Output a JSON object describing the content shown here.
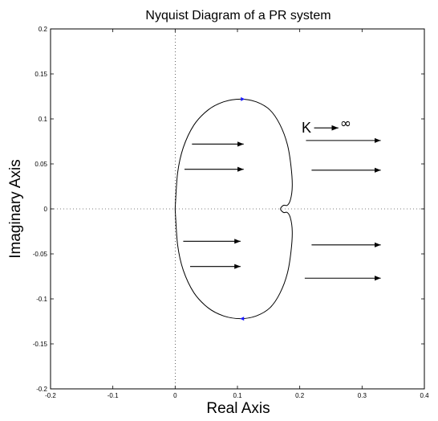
{
  "chart_data": {
    "type": "line",
    "title": "Nyquist Diagram of a PR system",
    "xlabel": "Real Axis",
    "ylabel": "Imaginary Axis",
    "xlim": [
      -0.2,
      0.4
    ],
    "ylim": [
      -0.2,
      0.2
    ],
    "grid": false,
    "x_ticks": [
      "-0.2",
      "-0.1",
      "0",
      "0.1",
      "0.2",
      "0.3",
      "0.4"
    ],
    "x_tick_values": [
      -0.2,
      -0.1,
      0,
      0.1,
      0.2,
      0.3,
      0.4
    ],
    "y_ticks": [
      "0.2",
      "0.15",
      "0.1",
      "0.05",
      "0",
      "-0.05",
      "-0.1",
      "-0.15",
      "-0.2"
    ],
    "y_tick_values": [
      0.2,
      0.15,
      0.1,
      0.05,
      0,
      -0.05,
      -0.1,
      -0.15,
      -0.2
    ],
    "series": [
      {
        "values": [
          [
            0.0,
            0.0
          ],
          [
            0.004,
            0.04
          ],
          [
            0.013,
            0.068
          ],
          [
            0.03,
            0.093
          ],
          [
            0.053,
            0.11
          ],
          [
            0.078,
            0.119
          ],
          [
            0.105,
            0.122
          ],
          [
            0.13,
            0.119
          ],
          [
            0.152,
            0.11
          ],
          [
            0.168,
            0.094
          ],
          [
            0.18,
            0.072
          ],
          [
            0.186,
            0.047
          ],
          [
            0.188,
            0.025
          ],
          [
            0.185,
            0.01
          ],
          [
            0.18,
            0.004
          ],
          [
            0.174,
            0.004
          ],
          [
            0.169,
            0.0
          ],
          [
            0.174,
            -0.004
          ],
          [
            0.18,
            -0.004
          ],
          [
            0.185,
            -0.01
          ],
          [
            0.188,
            -0.025
          ],
          [
            0.186,
            -0.047
          ],
          [
            0.18,
            -0.072
          ],
          [
            0.168,
            -0.094
          ],
          [
            0.152,
            -0.11
          ],
          [
            0.13,
            -0.119
          ],
          [
            0.105,
            -0.122
          ],
          [
            0.078,
            -0.119
          ],
          [
            0.053,
            -0.11
          ],
          [
            0.03,
            -0.093
          ],
          [
            0.013,
            -0.068
          ],
          [
            0.004,
            -0.04
          ],
          [
            0.0,
            0.0
          ]
        ]
      }
    ],
    "direction_markers": [
      {
        "x": 0.108,
        "y": 0.122,
        "direction": "right"
      },
      {
        "x": 0.108,
        "y": -0.122,
        "direction": "left"
      }
    ],
    "arrows": [
      {
        "x1": 0.027,
        "y1": 0.072,
        "x2": 0.11,
        "y2": 0.072
      },
      {
        "x1": 0.015,
        "y1": 0.044,
        "x2": 0.11,
        "y2": 0.044
      },
      {
        "x1": 0.013,
        "y1": -0.036,
        "x2": 0.105,
        "y2": -0.036
      },
      {
        "x1": 0.024,
        "y1": -0.064,
        "x2": 0.105,
        "y2": -0.064
      },
      {
        "x1": 0.21,
        "y1": 0.076,
        "x2": 0.33,
        "y2": 0.076
      },
      {
        "x1": 0.219,
        "y1": 0.043,
        "x2": 0.33,
        "y2": 0.043
      },
      {
        "x1": 0.219,
        "y1": -0.04,
        "x2": 0.33,
        "y2": -0.04
      },
      {
        "x1": 0.208,
        "y1": -0.077,
        "x2": 0.33,
        "y2": -0.077
      }
    ],
    "annotation": {
      "k_label": "K",
      "infinity_label": "∞",
      "x": 0.203,
      "y": 0.09,
      "arrow": {
        "x1": 0.223,
        "y1": 0.09,
        "x2": 0.262,
        "y2": 0.09
      }
    }
  }
}
